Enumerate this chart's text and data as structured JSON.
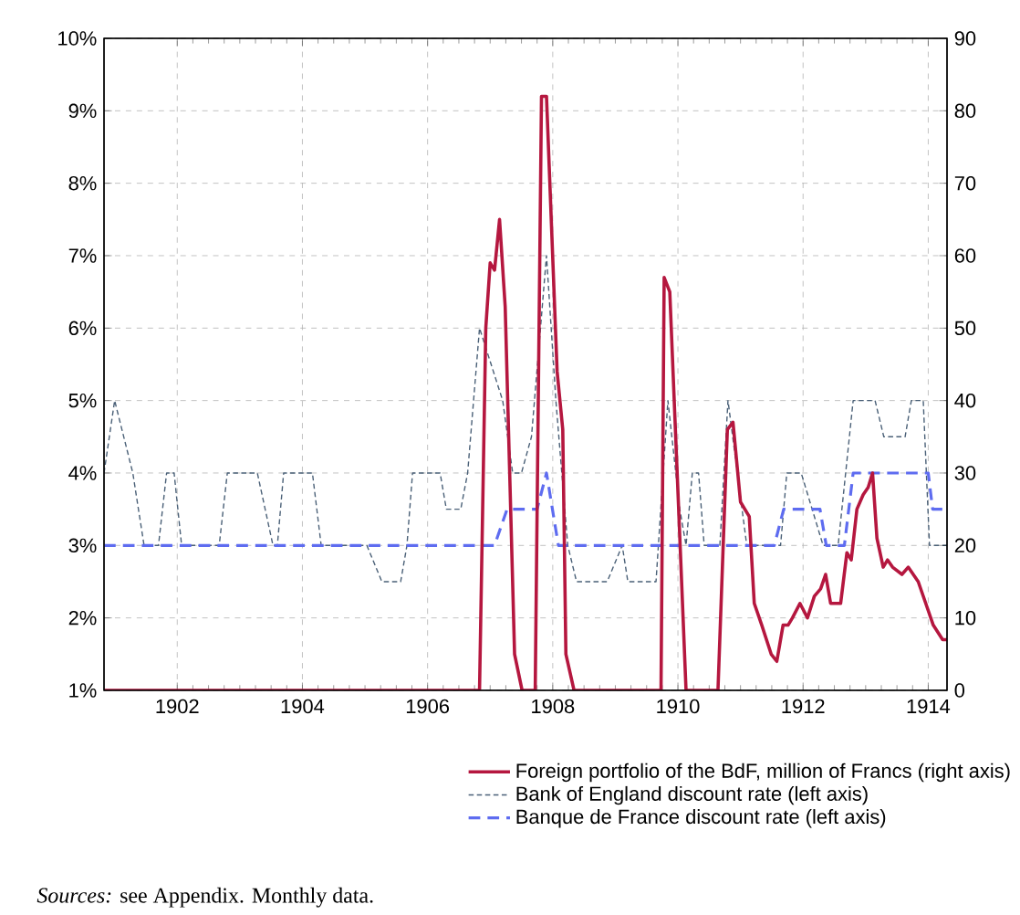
{
  "chart_data": {
    "type": "line",
    "xlim": [
      1900.83,
      1914.3
    ],
    "xticks": [
      1902,
      1904,
      1906,
      1908,
      1910,
      1912,
      1914
    ],
    "ylim": [
      1,
      10
    ],
    "yticks": [
      {
        "value": 1,
        "label": "1%"
      },
      {
        "value": 2,
        "label": "2%"
      },
      {
        "value": 3,
        "label": "3%"
      },
      {
        "value": 4,
        "label": "4%"
      },
      {
        "value": 5,
        "label": "5%"
      },
      {
        "value": 6,
        "label": "6%"
      },
      {
        "value": 7,
        "label": "7%"
      },
      {
        "value": 8,
        "label": "8%"
      },
      {
        "value": 9,
        "label": "9%"
      },
      {
        "value": 10,
        "label": "10%"
      }
    ],
    "y2lim": [
      0,
      90
    ],
    "y2ticks": [
      0,
      10,
      20,
      30,
      40,
      50,
      60,
      70,
      80,
      90
    ],
    "grid": true,
    "legend": "bottom",
    "series": [
      {
        "name": "Foreign portfolio of the BdF, million of Francs (right axis)",
        "color": "#b5173f",
        "axis": "y2",
        "line_style": "solid",
        "x": [
          1900.83,
          1906.83,
          1906.93,
          1907.0,
          1907.07,
          1907.15,
          1907.24,
          1907.39,
          1907.51,
          1907.72,
          1907.82,
          1907.9,
          1908.07,
          1908.16,
          1908.21,
          1908.34,
          1909.73,
          1909.78,
          1909.87,
          1910.13,
          1910.64,
          1910.79,
          1910.88,
          1911.0,
          1911.14,
          1911.22,
          1911.34,
          1911.49,
          1911.58,
          1911.68,
          1911.76,
          1911.83,
          1911.95,
          1912.07,
          1912.18,
          1912.28,
          1912.36,
          1912.44,
          1912.6,
          1912.7,
          1912.77,
          1912.86,
          1912.96,
          1913.04,
          1913.11,
          1913.18,
          1913.28,
          1913.35,
          1913.43,
          1913.58,
          1913.68,
          1913.84,
          1913.96,
          1914.08,
          1914.23,
          1914.3
        ],
        "values": [
          0,
          0,
          50,
          59,
          58,
          65,
          53,
          5,
          0,
          0,
          82,
          82,
          44,
          36,
          5,
          0,
          0,
          57,
          55,
          0,
          0,
          36,
          37,
          26,
          24,
          12,
          9,
          5,
          4,
          9,
          9,
          10,
          12,
          10,
          13,
          14,
          16,
          12,
          12,
          19,
          18,
          25,
          27,
          28,
          30,
          21,
          17,
          18,
          17,
          16,
          17,
          15,
          12,
          9,
          7,
          7
        ]
      },
      {
        "name": "Bank of England discount rate (left axis)",
        "color": "#4a6077",
        "line_style": "dashed",
        "x": [
          1900.83,
          1901.0,
          1901.29,
          1901.47,
          1901.7,
          1901.83,
          1901.95,
          1902.07,
          1902.67,
          1902.8,
          1903.28,
          1903.53,
          1903.6,
          1903.7,
          1904.16,
          1904.3,
          1905.03,
          1905.27,
          1905.57,
          1905.67,
          1905.76,
          1906.2,
          1906.3,
          1906.53,
          1906.64,
          1906.83,
          1907.2,
          1907.36,
          1907.5,
          1907.66,
          1907.9,
          1908.05,
          1908.24,
          1908.38,
          1908.87,
          1909.11,
          1909.2,
          1909.65,
          1909.84,
          1910.03,
          1910.13,
          1910.23,
          1910.33,
          1910.42,
          1910.67,
          1910.8,
          1911.1,
          1911.64,
          1911.74,
          1911.97,
          1912.32,
          1912.56,
          1912.8,
          1913.15,
          1913.29,
          1913.63,
          1913.73,
          1913.92,
          1914.02,
          1914.3
        ],
        "values": [
          4,
          5,
          4,
          3,
          3,
          4,
          4,
          3,
          3,
          4,
          4,
          3,
          3,
          4,
          4,
          3,
          3,
          2.5,
          2.5,
          3,
          4,
          4,
          3.5,
          3.5,
          4,
          6,
          5,
          4,
          4,
          4.5,
          7,
          5,
          3,
          2.5,
          2.5,
          3,
          2.5,
          2.5,
          5,
          3.5,
          3,
          4,
          4,
          3,
          3,
          5,
          3,
          3,
          4,
          4,
          3,
          3,
          5,
          5,
          4.5,
          4.5,
          5,
          5,
          3,
          3
        ]
      },
      {
        "name": "Banque de France discount rate (left axis)",
        "color": "#5e6cf0",
        "line_style": "dashed",
        "x": [
          1900.83,
          1907.07,
          1907.27,
          1907.75,
          1907.9,
          1908.09,
          1911.54,
          1911.69,
          1912.27,
          1912.37,
          1912.66,
          1912.8,
          1914.0,
          1914.07,
          1914.3
        ],
        "values": [
          3,
          3,
          3.5,
          3.5,
          4,
          3,
          3,
          3.5,
          3.5,
          3,
          3,
          4,
          4,
          3.5,
          3.5
        ]
      }
    ],
    "annotations": [
      "*Sources:* see Appendix. Monthly data."
    ]
  }
}
